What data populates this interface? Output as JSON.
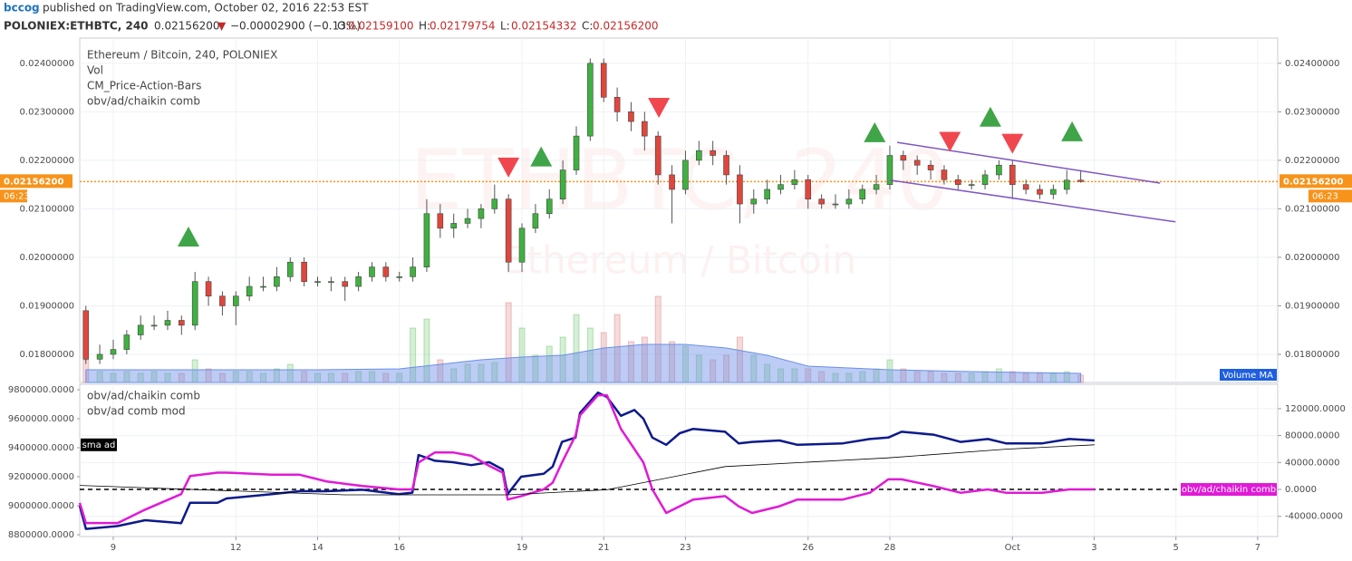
{
  "header": {
    "author": "bccog",
    "byline": "published on TradingView.com, October 02, 2016 22:53 EST",
    "symbol": "POLONIEX:ETHBTC, 240",
    "last": "0.02156200",
    "arrow": "▼",
    "change": "−0.00002900 (−0.13%)",
    "ohlc": [
      {
        "label": "O:",
        "value": "0.02159100"
      },
      {
        "label": "H:",
        "value": "0.02179754"
      },
      {
        "label": "L:",
        "value": "0.02154332"
      },
      {
        "label": "C:",
        "value": "0.02156200"
      }
    ]
  },
  "chart_data": {
    "type": "candlestick",
    "legend": [
      "Ethereum / Bitcoin, 240, POLONIEX",
      "Vol",
      "CM_Price-Action-Bars",
      "obv/ad/chaikin comb"
    ],
    "watermark": [
      "ETHBTC, 240",
      "Ethereum / Bitcoin"
    ],
    "xlim": [
      8.18,
      37.49
    ],
    "xticks": [
      9,
      12,
      14,
      16,
      19,
      21,
      23,
      26,
      28,
      {
        "value": 31,
        "label": "Oct"
      },
      {
        "value": 33,
        "label": "3"
      },
      {
        "value": 35,
        "label": "5"
      },
      {
        "value": 37,
        "label": "7"
      }
    ],
    "ylim": [
      0.01742,
      0.02452
    ],
    "yticks": [
      {
        "value": 0.024,
        "label": "0.02400000"
      },
      {
        "value": 0.023,
        "label": "0.02300000"
      },
      {
        "value": 0.022,
        "label": "0.02200000"
      },
      {
        "value": 0.021,
        "label": "0.02100000"
      },
      {
        "value": 0.02,
        "label": "0.02000000"
      },
      {
        "value": 0.019,
        "label": "0.01900000"
      },
      {
        "value": 0.018,
        "label": "0.01800000"
      }
    ],
    "grid": true,
    "up_color": "#3fb13f",
    "down_color": "#e0463c",
    "x": [
      8.33,
      8.67,
      9,
      9.33,
      9.67,
      10,
      10.33,
      10.67,
      11,
      11.33,
      11.67,
      12,
      12.33,
      12.67,
      13,
      13.33,
      13.67,
      14,
      14.33,
      14.67,
      15,
      15.33,
      15.67,
      16,
      16.33,
      16.67,
      17,
      17.33,
      17.67,
      18,
      18.33,
      18.67,
      19,
      19.33,
      19.67,
      20,
      20.33,
      20.67,
      21,
      21.33,
      21.67,
      22,
      22.33,
      22.67,
      23,
      23.33,
      23.67,
      24,
      24.33,
      24.67,
      25,
      25.33,
      25.67,
      26,
      26.33,
      26.67,
      27,
      27.33,
      27.67,
      28,
      28.33,
      28.67,
      29,
      29.33,
      29.67,
      30,
      30.33,
      30.67,
      31,
      31.33,
      31.67,
      32,
      32.33,
      32.67
    ],
    "open": [
      0.0189,
      0.0179,
      0.018,
      0.0181,
      0.0184,
      0.0186,
      0.0186,
      0.0187,
      0.0186,
      0.0195,
      0.0192,
      0.019,
      0.0192,
      0.0194,
      0.0194,
      0.0196,
      0.0199,
      0.0195,
      0.0195,
      0.0195,
      0.0194,
      0.0196,
      0.0198,
      0.0196,
      0.0196,
      0.0198,
      0.0209,
      0.0206,
      0.0207,
      0.0208,
      0.021,
      0.0212,
      0.0199,
      0.0206,
      0.0209,
      0.0212,
      0.0218,
      0.0225,
      0.024,
      0.0233,
      0.023,
      0.0228,
      0.0225,
      0.0217,
      0.0214,
      0.022,
      0.0222,
      0.0221,
      0.0217,
      0.0211,
      0.0212,
      0.0214,
      0.0215,
      0.0216,
      0.0212,
      0.0211,
      0.0211,
      0.0212,
      0.0214,
      0.0215,
      0.0221,
      0.022,
      0.0219,
      0.0218,
      0.0216,
      0.0215,
      0.0215,
      0.0217,
      0.0219,
      0.0215,
      0.0214,
      0.0213,
      0.0214,
      0.021591
    ],
    "high": [
      0.019,
      0.0182,
      0.0183,
      0.0185,
      0.0188,
      0.0188,
      0.0189,
      0.0188,
      0.0197,
      0.0196,
      0.0193,
      0.0193,
      0.0196,
      0.0196,
      0.0198,
      0.02,
      0.02,
      0.0196,
      0.0196,
      0.0196,
      0.0197,
      0.0199,
      0.0199,
      0.0197,
      0.02,
      0.0212,
      0.0211,
      0.0209,
      0.021,
      0.0211,
      0.0215,
      0.0213,
      0.0207,
      0.0211,
      0.0214,
      0.022,
      0.0227,
      0.0241,
      0.0241,
      0.0235,
      0.0232,
      0.023,
      0.0226,
      0.0219,
      0.0222,
      0.0224,
      0.0224,
      0.0222,
      0.0219,
      0.0214,
      0.0216,
      0.0217,
      0.0218,
      0.0217,
      0.0213,
      0.0213,
      0.0214,
      0.0215,
      0.0217,
      0.0223,
      0.0222,
      0.0221,
      0.022,
      0.0219,
      0.0217,
      0.0216,
      0.0218,
      0.022,
      0.022,
      0.0216,
      0.0215,
      0.0215,
      0.0218,
      0.0218
    ],
    "low": [
      0.0178,
      0.0178,
      0.0179,
      0.018,
      0.0183,
      0.0185,
      0.0185,
      0.0184,
      0.0185,
      0.019,
      0.0188,
      0.0186,
      0.0191,
      0.0193,
      0.0193,
      0.0195,
      0.0194,
      0.0194,
      0.0193,
      0.0191,
      0.0193,
      0.0195,
      0.0195,
      0.0195,
      0.0195,
      0.0197,
      0.0204,
      0.0204,
      0.0206,
      0.0206,
      0.0209,
      0.0197,
      0.0197,
      0.0205,
      0.0208,
      0.0211,
      0.0217,
      0.0224,
      0.0232,
      0.0228,
      0.0226,
      0.0222,
      0.0215,
      0.0207,
      0.0213,
      0.0219,
      0.0219,
      0.0215,
      0.0207,
      0.0209,
      0.0211,
      0.0213,
      0.0214,
      0.021,
      0.021,
      0.021,
      0.021,
      0.0211,
      0.0213,
      0.0214,
      0.0218,
      0.0217,
      0.0216,
      0.0215,
      0.0214,
      0.0214,
      0.0214,
      0.0216,
      0.0212,
      0.0213,
      0.0212,
      0.0212,
      0.0213,
      0.02154
    ],
    "close": [
      0.0179,
      0.018,
      0.0181,
      0.0184,
      0.0186,
      0.0186,
      0.0187,
      0.0186,
      0.0195,
      0.0192,
      0.019,
      0.0192,
      0.0194,
      0.0194,
      0.0196,
      0.0199,
      0.0195,
      0.0195,
      0.0195,
      0.0194,
      0.0196,
      0.0198,
      0.0196,
      0.0196,
      0.0198,
      0.0209,
      0.0206,
      0.0207,
      0.0208,
      0.021,
      0.0212,
      0.0199,
      0.0206,
      0.0209,
      0.0212,
      0.0218,
      0.0225,
      0.024,
      0.0233,
      0.023,
      0.0228,
      0.0225,
      0.0217,
      0.0214,
      0.022,
      0.0222,
      0.0221,
      0.0217,
      0.0211,
      0.0212,
      0.0214,
      0.0215,
      0.0216,
      0.0212,
      0.0211,
      0.0211,
      0.0212,
      0.0214,
      0.0215,
      0.0221,
      0.022,
      0.0219,
      0.0218,
      0.0216,
      0.0215,
      0.0215,
      0.0217,
      0.0219,
      0.0215,
      0.0214,
      0.0213,
      0.0214,
      0.021591,
      0.021562
    ],
    "volume_ylim": [
      0,
      380
    ],
    "volume_up_color": "rgba(70,180,70,0.22)",
    "volume_down_color": "rgba(215,90,90,0.22)",
    "volume": [
      25,
      12,
      10,
      12,
      10,
      12,
      10,
      10,
      25,
      15,
      10,
      12,
      12,
      10,
      15,
      20,
      12,
      10,
      10,
      10,
      12,
      12,
      10,
      10,
      60,
      70,
      25,
      15,
      20,
      20,
      22,
      88,
      60,
      30,
      40,
      50,
      75,
      60,
      55,
      75,
      45,
      50,
      95,
      45,
      40,
      30,
      25,
      30,
      50,
      30,
      20,
      15,
      15,
      15,
      12,
      10,
      10,
      12,
      15,
      25,
      15,
      12,
      12,
      10,
      10,
      10,
      12,
      15,
      12,
      10,
      10,
      10,
      12,
      8
    ],
    "volume_ma": {
      "name": "Volume MA",
      "color": "#6b8fe6",
      "x": [
        8.33,
        10,
        12,
        14,
        16,
        17,
        18,
        19,
        20,
        21,
        22,
        23,
        24,
        25,
        26,
        27,
        28,
        30,
        32.67
      ],
      "values": [
        14,
        14,
        14,
        14,
        15,
        20,
        25,
        28,
        30,
        38,
        42,
        42,
        38,
        30,
        18,
        16,
        14,
        12,
        10
      ]
    },
    "last_price": {
      "value": 0.021562,
      "label": "0.02156200",
      "countdown": "06:23",
      "color": "#f7931a"
    },
    "up_markers": {
      "color": "#3fa548",
      "x": [
        10.84,
        19.47,
        27.63,
        30.46,
        32.46
      ],
      "y": [
        0.02041,
        0.02206,
        0.02256,
        0.02288,
        0.02258
      ]
    },
    "down_markers": {
      "color": "#f0474f",
      "x": [
        18.67,
        22.35,
        29.47,
        31.0
      ],
      "y": [
        0.02187,
        0.0231,
        0.0224,
        0.02236
      ]
    },
    "channel": {
      "color": "#7e57c2",
      "lines": [
        {
          "x": [
            28.18,
            34.61
          ],
          "y": [
            0.02237,
            0.02153
          ]
        },
        {
          "x": [
            28.0,
            34.99
          ],
          "y": [
            0.02159,
            0.02073
          ]
        }
      ]
    },
    "indicator": {
      "ylim": [
        8787500,
        9837500
      ],
      "yticks": [
        {
          "value": 9800000,
          "label": "9800000.0000"
        },
        {
          "value": 9600000,
          "label": "9600000.0000"
        },
        {
          "value": 9400000,
          "label": "9400000.0000"
        },
        {
          "value": 9200000,
          "label": "9200000.0000"
        },
        {
          "value": 9000000,
          "label": "9000000.0000"
        },
        {
          "value": 8800000,
          "label": "8800000.0000"
        }
      ],
      "y2lim": [
        -70000,
        156250
      ],
      "y2ticks": [
        {
          "value": 120000,
          "label": "120000.0000"
        },
        {
          "value": 80000,
          "label": "80000.0000"
        },
        {
          "value": 40000,
          "label": "40000.0000"
        },
        {
          "value": 0,
          "label": "0.0000"
        },
        {
          "value": -40000,
          "label": "-40000.0000"
        }
      ],
      "hline": 0,
      "series": [
        {
          "name": "obv/ad comb mod",
          "color": "#0d1a8c",
          "x": [
            8.18,
            8.33,
            9.11,
            9.78,
            10.66,
            10.88,
            11.55,
            11.77,
            12.88,
            13.55,
            14.21,
            15.1,
            15.98,
            16.32,
            16.47,
            16.87,
            17.31,
            17.76,
            18.2,
            18.53,
            18.65,
            18.98,
            19.53,
            19.75,
            19.98,
            20.31,
            20.42,
            20.86,
            21.08,
            21.42,
            21.75,
            21.97,
            22.19,
            22.53,
            22.86,
            23.19,
            23.97,
            24.3,
            24.63,
            25.3,
            25.74,
            26.85,
            27.51,
            27.96,
            28.29,
            29.07,
            29.73,
            30.4,
            30.84,
            31.73,
            32.39,
            33.01
          ],
          "values": [
            9000000,
            8840000,
            8860000,
            8900000,
            8880000,
            9020000,
            9020000,
            9050000,
            9080000,
            9100000,
            9100000,
            9110000,
            9080000,
            9090000,
            9350000,
            9310000,
            9300000,
            9280000,
            9300000,
            9250000,
            9080000,
            9200000,
            9220000,
            9270000,
            9440000,
            9470000,
            9640000,
            9780000,
            9750000,
            9620000,
            9660000,
            9600000,
            9470000,
            9420000,
            9500000,
            9530000,
            9510000,
            9430000,
            9440000,
            9450000,
            9420000,
            9430000,
            9460000,
            9470000,
            9510000,
            9490000,
            9440000,
            9460000,
            9430000,
            9430000,
            9460000,
            9450000
          ]
        },
        {
          "name": "obv/ad/chaikin comb",
          "color": "#e01ad6",
          "axis": "y2",
          "tag": "right",
          "x": [
            8.18,
            8.33,
            9.11,
            9.78,
            10.66,
            10.88,
            11.55,
            11.77,
            12.88,
            13.55,
            14.21,
            15.1,
            15.98,
            16.32,
            16.47,
            16.87,
            17.31,
            17.76,
            18.2,
            18.53,
            18.65,
            18.98,
            19.53,
            19.75,
            19.98,
            20.31,
            20.42,
            20.86,
            21.08,
            21.42,
            21.75,
            21.97,
            22.19,
            22.53,
            22.86,
            23.19,
            23.97,
            24.3,
            24.63,
            25.3,
            25.74,
            26.85,
            27.51,
            27.96,
            28.29,
            29.07,
            29.73,
            30.4,
            30.84,
            31.73,
            32.39,
            33.01
          ],
          "values": [
            -20000,
            -50000,
            -50000,
            -30000,
            -7000,
            20000,
            25000,
            25000,
            22000,
            22000,
            12000,
            5000,
            0,
            0,
            40000,
            55000,
            55000,
            50000,
            35000,
            25000,
            -15000,
            -10000,
            0,
            10000,
            40000,
            80000,
            110000,
            140000,
            140000,
            90000,
            60000,
            40000,
            0,
            -35000,
            -25000,
            -15000,
            -10000,
            -25000,
            -35000,
            -25000,
            -15000,
            -15000,
            -5000,
            15000,
            15000,
            5000,
            -5000,
            0,
            -5000,
            -5000,
            0,
            0
          ]
        },
        {
          "name": "sma ad",
          "color": "#000000",
          "tag": "left",
          "x": [
            8.18,
            14.66,
            18.65,
            21.08,
            23.97,
            27.96,
            30.84,
            33.01
          ],
          "values": [
            9140000,
            9075000,
            9075000,
            9110000,
            9270000,
            9330000,
            9390000,
            9420000
          ]
        }
      ]
    }
  }
}
